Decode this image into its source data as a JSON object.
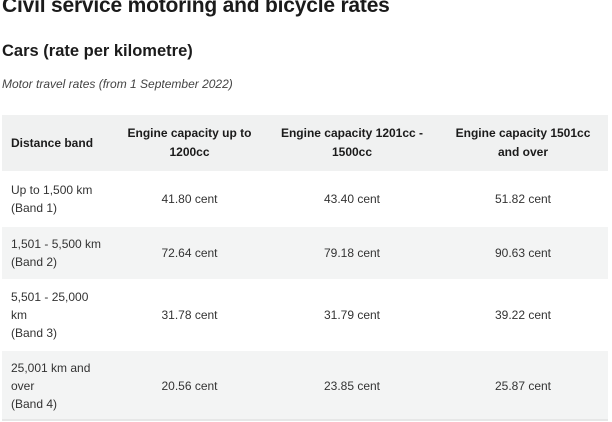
{
  "page": {
    "title": "Civil service motoring and bicycle rates"
  },
  "section": {
    "title": "Cars (rate per kilometre)",
    "caption": "Motor travel rates (from 1 September 2022)"
  },
  "table": {
    "headers": [
      "Distance band",
      "Engine capacity up to 1200cc",
      "Engine capacity 1201cc - 1500cc",
      "Engine capacity 1501cc and over"
    ],
    "rows": [
      {
        "band_lines": [
          "Up to 1,500 km",
          "(Band 1)"
        ],
        "values": [
          "41.80 cent",
          "43.40 cent",
          "51.82 cent"
        ]
      },
      {
        "band_lines": [
          "1,501 - 5,500 km",
          "(Band 2)"
        ],
        "values": [
          "72.64 cent",
          "79.18 cent",
          "90.63 cent"
        ]
      },
      {
        "band_lines": [
          "5,501 - 25,000",
          "km",
          "(Band 3)"
        ],
        "values": [
          "31.78 cent",
          "31.79 cent",
          "39.22 cent"
        ]
      },
      {
        "band_lines": [
          "25,001 km and",
          "over",
          "(Band 4)"
        ],
        "values": [
          "20.56 cent",
          "23.85 cent",
          "25.87 cent"
        ]
      }
    ]
  }
}
